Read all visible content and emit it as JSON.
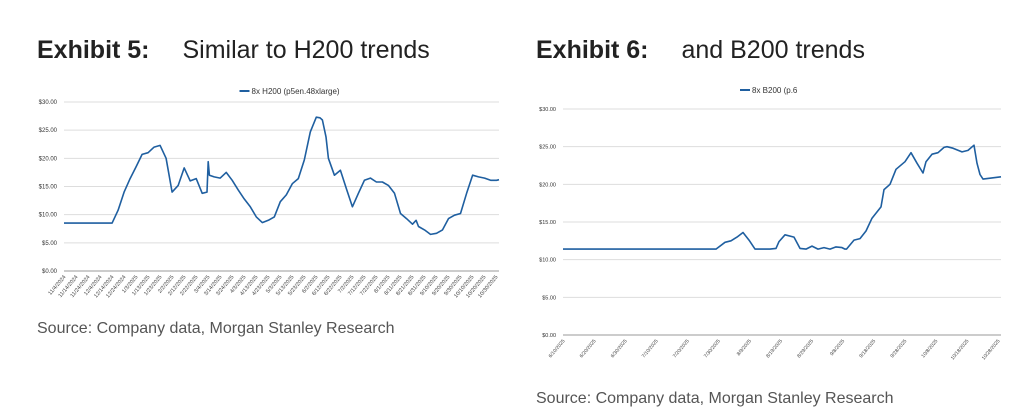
{
  "exhibits": [
    {
      "label": "Exhibit 5:",
      "title": "Similar to H200 trends",
      "source": "Source: Company data, Morgan Stanley Research"
    },
    {
      "label": "Exhibit 6:",
      "title": "and B200 trends",
      "source": "Source: Company data, Morgan Stanley Research"
    }
  ],
  "chart_data": [
    {
      "type": "line",
      "title": "",
      "legend": "8x H200 (p5en.48xlarge)",
      "legend_position": "top-center",
      "color": "#1f5fa0",
      "ylim": [
        0,
        30
      ],
      "yticks": [
        "$0.00",
        "$5.00",
        "$10.00",
        "$15.00",
        "$20.00",
        "$25.00",
        "$30.00"
      ],
      "grid": true,
      "xticks": [
        "11/4/2024",
        "11/14/2024",
        "11/24/2024",
        "12/4/2024",
        "12/14/2024",
        "12/24/2024",
        "1/3/2025",
        "1/13/2025",
        "1/23/2025",
        "2/2/2025",
        "2/12/2025",
        "2/22/2025",
        "3/4/2025",
        "3/14/2025",
        "3/24/2025",
        "4/3/2025",
        "4/13/2025",
        "4/23/2025",
        "5/3/2025",
        "5/13/2025",
        "5/23/2025",
        "6/2/2025",
        "6/12/2025",
        "6/22/2025",
        "7/2/2025",
        "7/12/2025",
        "7/22/2025",
        "8/1/2025",
        "8/11/2025",
        "8/21/2025",
        "8/31/2025",
        "9/10/2025",
        "9/20/2025",
        "9/30/2025",
        "10/10/2025",
        "10/20/2025",
        "10/30/2025"
      ],
      "x_days_since_start": [
        0,
        40,
        45,
        50,
        55,
        60,
        65,
        70,
        75,
        80,
        85,
        90,
        95,
        100,
        105,
        110,
        115,
        119,
        120,
        121,
        125,
        130,
        135,
        140,
        145,
        150,
        155,
        160,
        165,
        170,
        175,
        180,
        185,
        190,
        195,
        200,
        205,
        210,
        213,
        215,
        218,
        220,
        225,
        230,
        235,
        240,
        245,
        250,
        255,
        260,
        265,
        270,
        275,
        280,
        285,
        290,
        293,
        295,
        300,
        305,
        310,
        315,
        320,
        325,
        330,
        335,
        340,
        345,
        350,
        355,
        360,
        362
      ],
      "y": [
        8.5,
        8.5,
        10.8,
        14.0,
        16.4,
        18.5,
        20.7,
        21.0,
        22.0,
        22.3,
        20.0,
        14.0,
        15.2,
        18.3,
        16.0,
        16.4,
        13.8,
        14.0,
        19.4,
        17.0,
        16.7,
        16.5,
        17.5,
        16.1,
        14.4,
        12.8,
        11.4,
        9.6,
        8.6,
        9.0,
        9.6,
        12.3,
        13.5,
        15.5,
        16.4,
        19.7,
        24.7,
        27.3,
        27.2,
        26.8,
        23.8,
        20.0,
        17.0,
        17.9,
        14.6,
        11.4,
        13.8,
        16.1,
        16.5,
        15.8,
        15.8,
        15.2,
        13.8,
        10.2,
        9.3,
        8.3,
        9.0,
        7.9,
        7.3,
        6.5,
        6.7,
        7.3,
        9.3,
        9.9,
        10.2,
        13.8,
        17.0,
        16.7,
        16.5,
        16.1,
        16.1,
        16.2
      ]
    },
    {
      "type": "line",
      "title": "",
      "legend": "8x B200 (p.6",
      "legend_position": "top-center",
      "color": "#1f5fa0",
      "ylim": [
        0,
        30
      ],
      "yticks": [
        "$0.00",
        "$5.00",
        "$10.00",
        "$15.00",
        "$20.00",
        "$25.00",
        "$30.00"
      ],
      "grid": true,
      "xticks": [
        "6/10/2025",
        "6/20/2025",
        "6/30/2025",
        "7/10/2025",
        "7/20/2025",
        "7/30/2025",
        "8/9/2025",
        "8/19/2025",
        "8/29/2025",
        "9/8/2025",
        "9/18/2025",
        "9/28/2025",
        "10/8/2025",
        "10/18/2025",
        "10/28/2025"
      ],
      "x_days_since_start": [
        0,
        51,
        54,
        56,
        58,
        60,
        62,
        64,
        69,
        71,
        72,
        74,
        77,
        79,
        81,
        83,
        85,
        87,
        89,
        91,
        93,
        94,
        94.5,
        97,
        99,
        101,
        103,
        106,
        107,
        109,
        111,
        114,
        116,
        118,
        120,
        121,
        123,
        125,
        127,
        128,
        130,
        133,
        135,
        137,
        138,
        139,
        140,
        146
      ],
      "y": [
        11.4,
        11.4,
        12.3,
        12.5,
        13.0,
        13.6,
        12.6,
        11.4,
        11.4,
        11.5,
        12.4,
        13.3,
        13.0,
        11.5,
        11.4,
        11.8,
        11.4,
        11.6,
        11.4,
        11.7,
        11.6,
        11.4,
        11.4,
        12.6,
        12.8,
        13.8,
        15.5,
        17.0,
        19.3,
        20.0,
        22.0,
        23.0,
        24.2,
        22.8,
        21.5,
        23.0,
        24.0,
        24.2,
        24.9,
        25.0,
        24.8,
        24.3,
        24.5,
        25.2,
        22.8,
        21.3,
        20.7,
        21.0
      ]
    }
  ]
}
